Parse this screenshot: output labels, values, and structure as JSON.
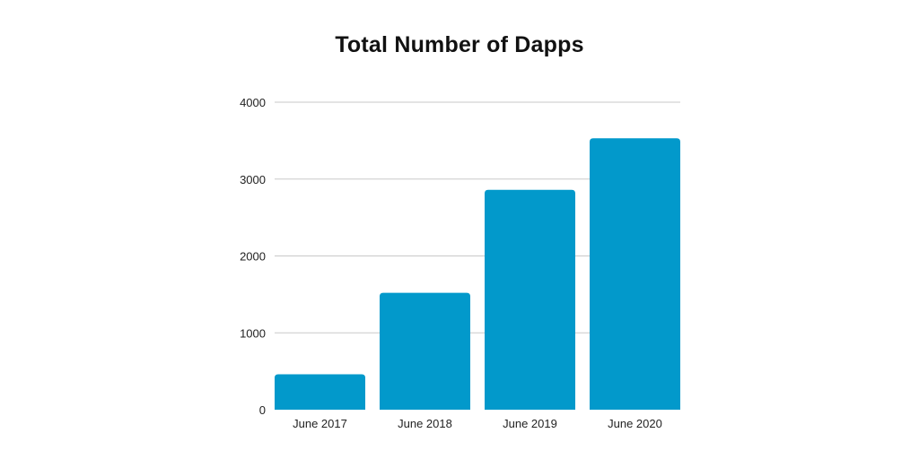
{
  "chart_data": {
    "type": "bar",
    "title": "Total Number of Dapps",
    "xlabel": "",
    "ylabel": "",
    "categories": [
      "June 2017",
      "June 2018",
      "June 2019",
      "June 2020"
    ],
    "values": [
      460,
      1520,
      2860,
      3530
    ],
    "ylim": [
      0,
      4000
    ],
    "yticks": [
      0,
      1000,
      2000,
      3000,
      4000
    ],
    "grid": true,
    "legend": "none",
    "bar_color": "#0299cb"
  }
}
